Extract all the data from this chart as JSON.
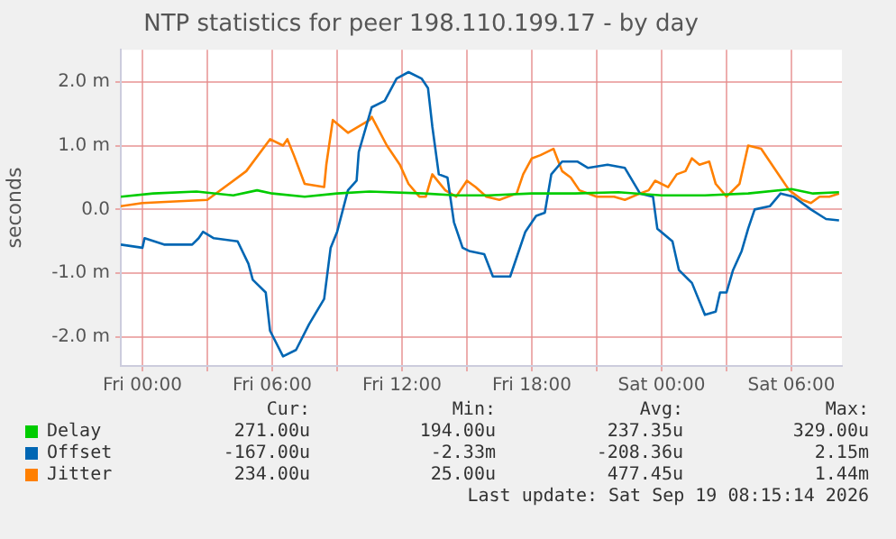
{
  "chart_data": {
    "type": "line",
    "title": "NTP statistics for peer 198.110.199.17 - by day",
    "ylabel": "seconds",
    "xlim": [
      "2026-09-17T23:00",
      "2026-09-19T08:20"
    ],
    "xticks": [
      {
        "value": "2026-09-18T00:00",
        "label": "Fri 00:00"
      },
      {
        "value": "2026-09-18T03:00",
        "label": null
      },
      {
        "value": "2026-09-18T06:00",
        "label": "Fri 06:00"
      },
      {
        "value": "2026-09-18T09:00",
        "label": null
      },
      {
        "value": "2026-09-18T12:00",
        "label": "Fri 12:00"
      },
      {
        "value": "2026-09-18T15:00",
        "label": null
      },
      {
        "value": "2026-09-18T18:00",
        "label": "Fri 18:00"
      },
      {
        "value": "2026-09-18T21:00",
        "label": null
      },
      {
        "value": "2026-09-19T00:00",
        "label": "Sat 00:00"
      },
      {
        "value": "2026-09-19T03:00",
        "label": null
      },
      {
        "value": "2026-09-19T06:00",
        "label": "Sat 06:00"
      }
    ],
    "ylim": [
      -2.45,
      2.5
    ],
    "yticks": [
      {
        "value": -2,
        "label": "-2.0 m"
      },
      {
        "value": -1,
        "label": "-1.0 m"
      },
      {
        "value": 0,
        "label": "0.0"
      },
      {
        "value": 1,
        "label": "1.0 m"
      },
      {
        "value": 2,
        "label": "2.0 m"
      }
    ],
    "grid": true,
    "legend": "bottom",
    "marker": "none",
    "line_style": "solid",
    "series": [
      {
        "name": "Delay",
        "color": "#00cc00",
        "x": [
          "2026-09-17T23:00",
          "2026-09-18T00:30",
          "2026-09-18T02:30",
          "2026-09-18T04:12",
          "2026-09-18T05:18",
          "2026-09-18T06:00",
          "2026-09-18T07:30",
          "2026-09-18T09:00",
          "2026-09-18T10:30",
          "2026-09-18T13:00",
          "2026-09-18T14:30",
          "2026-09-18T16:00",
          "2026-09-18T18:00",
          "2026-09-18T20:00",
          "2026-09-18T22:00",
          "2026-09-19T00:00",
          "2026-09-19T02:00",
          "2026-09-19T04:00",
          "2026-09-19T06:00",
          "2026-09-19T07:00",
          "2026-09-19T08:12"
        ],
        "values": [
          0.2,
          0.25,
          0.28,
          0.22,
          0.3,
          0.25,
          0.2,
          0.25,
          0.28,
          0.25,
          0.22,
          0.22,
          0.25,
          0.25,
          0.27,
          0.22,
          0.22,
          0.25,
          0.32,
          0.25,
          0.27
        ]
      },
      {
        "name": "Offset",
        "color": "#0066b3",
        "x": [
          "2026-09-17T23:00",
          "2026-09-18T00:00",
          "2026-09-18T00:06",
          "2026-09-18T01:00",
          "2026-09-18T02:18",
          "2026-09-18T02:36",
          "2026-09-18T02:48",
          "2026-09-18T03:18",
          "2026-09-18T04:24",
          "2026-09-18T04:54",
          "2026-09-18T05:06",
          "2026-09-18T05:42",
          "2026-09-18T05:54",
          "2026-09-18T06:30",
          "2026-09-18T07:06",
          "2026-09-18T07:42",
          "2026-09-18T08:24",
          "2026-09-18T08:42",
          "2026-09-18T09:00",
          "2026-09-18T09:30",
          "2026-09-18T09:54",
          "2026-09-18T10:00",
          "2026-09-18T10:36",
          "2026-09-18T11:12",
          "2026-09-18T11:45",
          "2026-09-18T12:18",
          "2026-09-18T12:54",
          "2026-09-18T13:12",
          "2026-09-18T13:24",
          "2026-09-18T13:42",
          "2026-09-18T14:06",
          "2026-09-18T14:24",
          "2026-09-18T14:48",
          "2026-09-18T15:06",
          "2026-09-18T15:48",
          "2026-09-18T16:12",
          "2026-09-18T17:00",
          "2026-09-18T17:18",
          "2026-09-18T17:42",
          "2026-09-18T18:12",
          "2026-09-18T18:36",
          "2026-09-18T18:54",
          "2026-09-18T19:24",
          "2026-09-18T20:06",
          "2026-09-18T20:36",
          "2026-09-18T21:30",
          "2026-09-18T22:18",
          "2026-09-18T23:00",
          "2026-09-18T23:36",
          "2026-09-18T23:48",
          "2026-09-19T00:30",
          "2026-09-19T00:48",
          "2026-09-19T01:24",
          "2026-09-19T02:00",
          "2026-09-19T02:30",
          "2026-09-19T02:42",
          "2026-09-19T03:00",
          "2026-09-19T03:18",
          "2026-09-19T03:42",
          "2026-09-19T04:00",
          "2026-09-19T04:18",
          "2026-09-19T05:00",
          "2026-09-19T05:30",
          "2026-09-19T06:06",
          "2026-09-19T06:54",
          "2026-09-19T07:36",
          "2026-09-19T08:12"
        ],
        "values": [
          -0.55,
          -0.6,
          -0.45,
          -0.55,
          -0.55,
          -0.45,
          -0.35,
          -0.45,
          -0.5,
          -0.85,
          -1.1,
          -1.3,
          -1.9,
          -2.3,
          -2.2,
          -1.8,
          -1.4,
          -0.6,
          -0.35,
          0.3,
          0.45,
          0.9,
          1.6,
          1.7,
          2.05,
          2.15,
          2.05,
          1.9,
          1.3,
          0.55,
          0.5,
          -0.2,
          -0.6,
          -0.65,
          -0.7,
          -1.05,
          -1.05,
          -0.75,
          -0.35,
          -0.1,
          -0.05,
          0.55,
          0.75,
          0.75,
          0.65,
          0.7,
          0.65,
          0.25,
          0.2,
          -0.3,
          -0.5,
          -0.95,
          -1.15,
          -1.65,
          -1.6,
          -1.3,
          -1.3,
          -0.95,
          -0.65,
          -0.3,
          0,
          0.05,
          0.25,
          0.2,
          0,
          -0.15,
          -0.17
        ]
      },
      {
        "name": "Jitter",
        "color": "#ff8000",
        "x": [
          "2026-09-17T23:00",
          "2026-09-18T00:00",
          "2026-09-18T03:00",
          "2026-09-18T04:48",
          "2026-09-18T05:54",
          "2026-09-18T06:30",
          "2026-09-18T06:42",
          "2026-09-18T07:00",
          "2026-09-18T07:30",
          "2026-09-18T08:24",
          "2026-09-18T08:30",
          "2026-09-18T08:48",
          "2026-09-18T09:30",
          "2026-09-18T10:30",
          "2026-09-18T10:36",
          "2026-09-18T11:18",
          "2026-09-18T11:54",
          "2026-09-18T12:18",
          "2026-09-18T12:48",
          "2026-09-18T13:06",
          "2026-09-18T13:24",
          "2026-09-18T14:00",
          "2026-09-18T14:30",
          "2026-09-18T15:00",
          "2026-09-18T15:24",
          "2026-09-18T15:54",
          "2026-09-18T16:30",
          "2026-09-18T17:18",
          "2026-09-18T17:36",
          "2026-09-18T18:00",
          "2026-09-18T18:24",
          "2026-09-18T19:00",
          "2026-09-18T19:24",
          "2026-09-18T19:48",
          "2026-09-18T20:12",
          "2026-09-18T21:00",
          "2026-09-18T21:48",
          "2026-09-18T22:18",
          "2026-09-18T23:00",
          "2026-09-18T23:24",
          "2026-09-18T23:42",
          "2026-09-19T00:18",
          "2026-09-19T00:42",
          "2026-09-19T01:06",
          "2026-09-19T01:24",
          "2026-09-19T01:45",
          "2026-09-19T02:12",
          "2026-09-19T02:30",
          "2026-09-19T03:00",
          "2026-09-19T03:36",
          "2026-09-19T04:00",
          "2026-09-19T04:36",
          "2026-09-19T05:00",
          "2026-09-19T05:30",
          "2026-09-19T05:54",
          "2026-09-19T06:30",
          "2026-09-19T06:54",
          "2026-09-19T07:18",
          "2026-09-19T07:45",
          "2026-09-19T08:12"
        ],
        "values": [
          0.05,
          0.1,
          0.15,
          0.6,
          1.1,
          1,
          1.1,
          0.85,
          0.4,
          0.35,
          0.7,
          1.4,
          1.2,
          1.4,
          1.45,
          1,
          0.7,
          0.4,
          0.2,
          0.2,
          0.55,
          0.3,
          0.2,
          0.45,
          0.35,
          0.2,
          0.15,
          0.25,
          0.55,
          0.8,
          0.85,
          0.95,
          0.6,
          0.5,
          0.3,
          0.2,
          0.2,
          0.15,
          0.25,
          0.3,
          0.45,
          0.35,
          0.55,
          0.6,
          0.8,
          0.7,
          0.75,
          0.4,
          0.2,
          0.4,
          1,
          0.95,
          0.75,
          0.5,
          0.3,
          0.15,
          0.1,
          0.2,
          0.2,
          0.25
        ]
      }
    ],
    "annotations": [
      "Cur:",
      "Min:",
      "Avg:",
      "Max:",
      "271.00u",
      "194.00u",
      "237.35u",
      "329.00u",
      "-167.00u",
      "-2.33m",
      "-208.36u",
      "2.15m",
      "234.00u",
      "25.00u",
      "477.45u",
      "1.44m",
      "Last update: Sat Sep 19 08:15:14 2026"
    ]
  }
}
